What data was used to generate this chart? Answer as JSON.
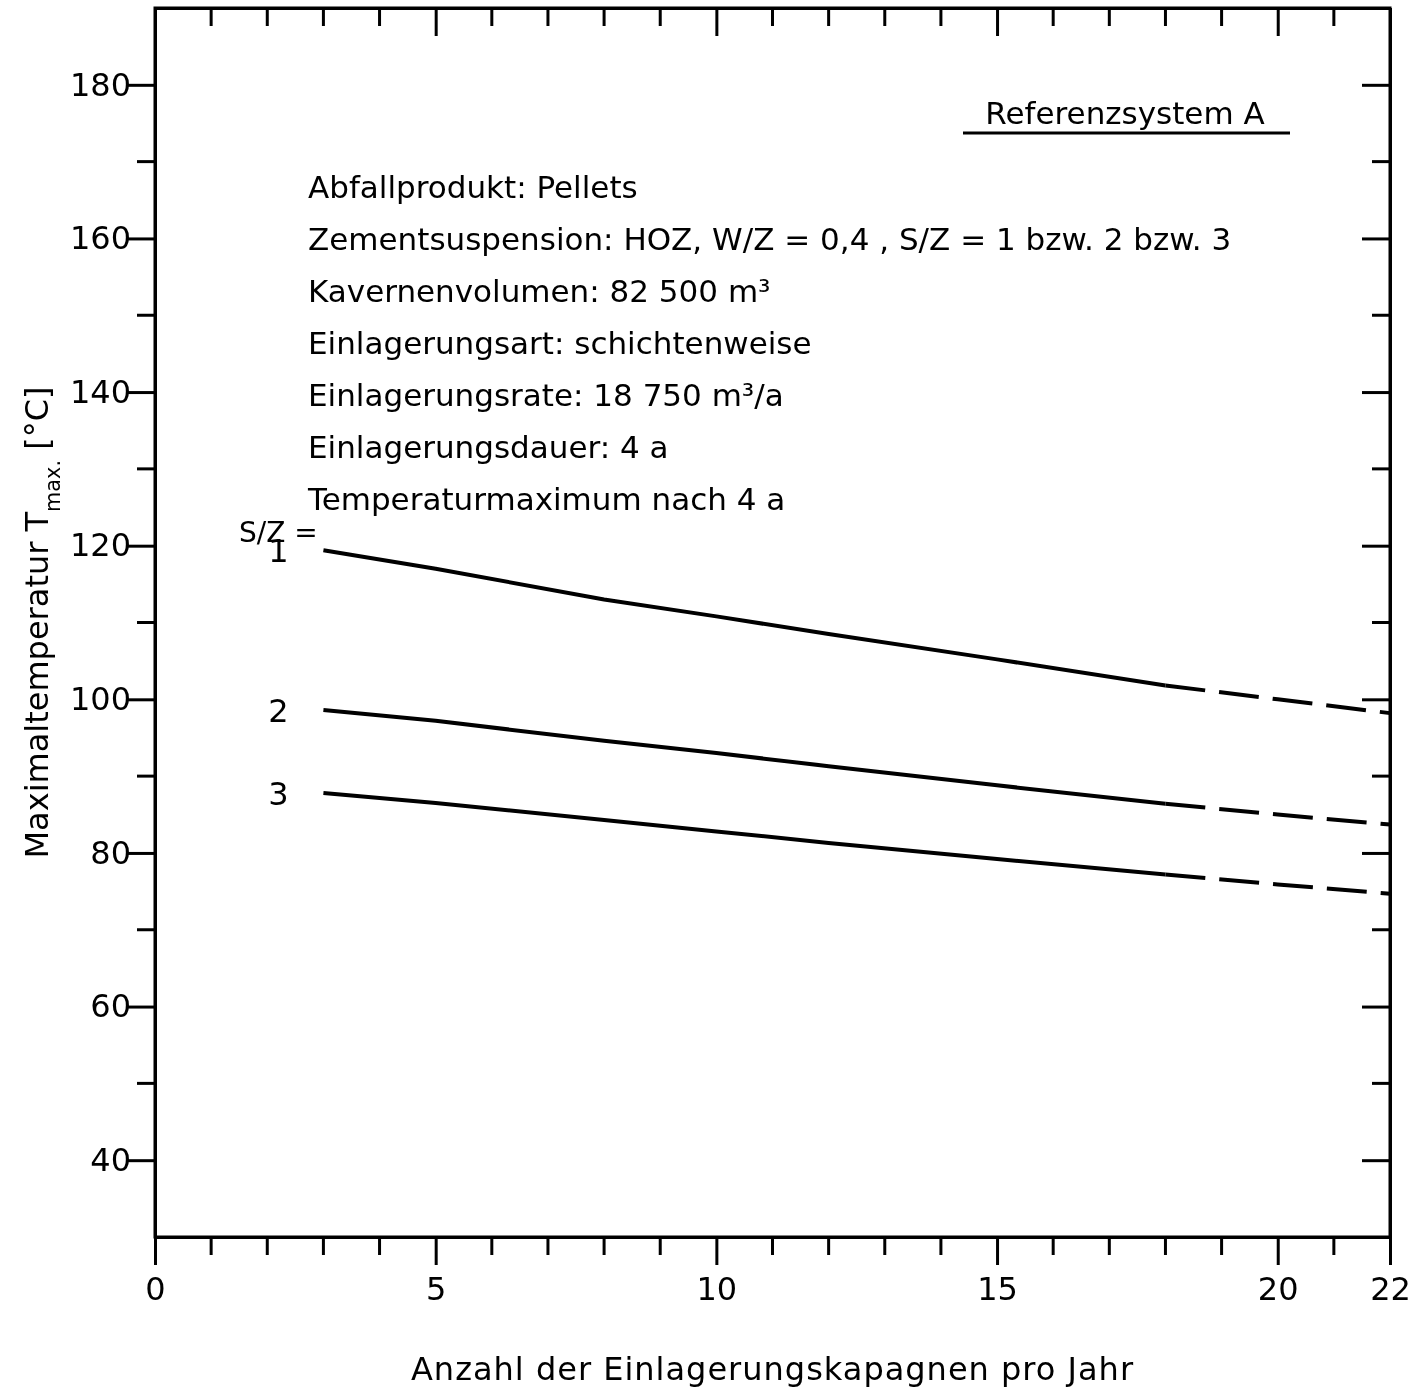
{
  "chart_data": {
    "type": "line",
    "xlabel": "Anzahl der Einlagerungskapagnen pro Jahr",
    "ylabel": "Maximaltemperatur T$_{max.}$ [°C]",
    "xlim": [
      0,
      22
    ],
    "ylim": [
      30,
      190
    ],
    "xticks": [
      0,
      5,
      10,
      15,
      20,
      22
    ],
    "yticks": [
      40,
      60,
      80,
      100,
      120,
      140,
      160,
      180
    ],
    "grid": false,
    "series": [
      {
        "name": "1",
        "color": "#000000",
        "line_style": "solid",
        "x": [
          3,
          5,
          8,
          10,
          12,
          15,
          18
        ],
        "values": [
          119.4,
          117,
          113,
          110.8,
          108.5,
          105.2,
          101.8
        ]
      },
      {
        "color": "#000000",
        "line_style": "dashed",
        "x": [
          18,
          20,
          22
        ],
        "values": [
          101.8,
          100,
          98.2
        ]
      },
      {
        "name": "2",
        "color": "#000000",
        "line_style": "solid",
        "x": [
          3,
          5,
          8,
          10,
          12,
          15,
          18
        ],
        "values": [
          98.6,
          97.2,
          94.6,
          93,
          91.3,
          88.8,
          86.4
        ]
      },
      {
        "color": "#000000",
        "line_style": "dashed",
        "x": [
          18,
          20,
          22
        ],
        "values": [
          86.4,
          85,
          83.7
        ]
      },
      {
        "name": "3",
        "color": "#000000",
        "line_style": "solid",
        "x": [
          3,
          5,
          8,
          10,
          12,
          15,
          18
        ],
        "values": [
          87.8,
          86.5,
          84.3,
          82.8,
          81.3,
          79.2,
          77.2
        ]
      },
      {
        "color": "#000000",
        "line_style": "dashed",
        "x": [
          18,
          20,
          22
        ],
        "values": [
          77.2,
          75.9,
          74.7
        ]
      }
    ],
    "annotations": [
      "Referenzsystem A",
      "Abfallprodukt: Pellets",
      "Zementsuspension: HOZ, W/Z = 0,4 , S/Z = 1 bzw. 2 bzw. 3",
      "Kavernenvolumen: 82 500 m³",
      "Einlagerungsart: schichtenweise",
      "Einlagerungsrate: 18 750 m³/a",
      "Einlagerungsdauer: 4 a",
      "Temperaturmaximum nach 4 a",
      "S/Z ="
    ]
  }
}
